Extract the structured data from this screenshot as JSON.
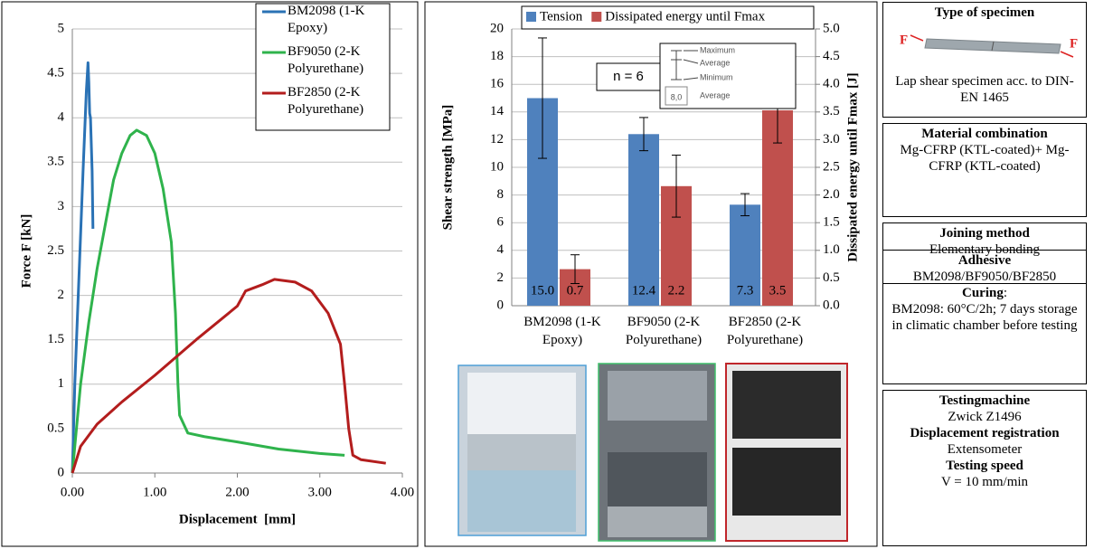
{
  "chart_data": [
    {
      "type": "line",
      "x_label": "Displacement  [mm]",
      "y_label": "Force F [kN]",
      "xlim": [
        0,
        4
      ],
      "xticks": [
        {
          "value": 0,
          "label": "0.00"
        },
        {
          "value": 1,
          "label": "1.00"
        },
        {
          "value": 2,
          "label": "2.00"
        },
        {
          "value": 3,
          "label": "3.00"
        },
        {
          "value": 4,
          "label": "4.00"
        }
      ],
      "ylim": [
        0,
        5
      ],
      "yticks": [
        0,
        0.5,
        1,
        1.5,
        2,
        2.5,
        3,
        3.5,
        4,
        4.5,
        5
      ],
      "grid": true,
      "legend": "top-right",
      "series": [
        {
          "name": "BM2098 (1-K Epoxy)",
          "color": "#2a72b5",
          "x": [
            0,
            0.03,
            0.08,
            0.13,
            0.17,
            0.19,
            0.2,
            0.21,
            0.22,
            0.24,
            0.25
          ],
          "values": [
            0,
            1.0,
            2.2,
            3.4,
            4.3,
            4.62,
            4.4,
            4.05,
            4.0,
            3.4,
            2.75
          ]
        },
        {
          "name": "BF9050 (2-K Polyurethane)",
          "color": "#2fb34c",
          "x": [
            0,
            0.05,
            0.1,
            0.2,
            0.3,
            0.4,
            0.5,
            0.6,
            0.7,
            0.78,
            0.9,
            1.0,
            1.1,
            1.2,
            1.25,
            1.28,
            1.3,
            1.35,
            1.4,
            1.6,
            2.0,
            2.5,
            3.0,
            3.3
          ],
          "values": [
            0,
            0.5,
            1.0,
            1.7,
            2.3,
            2.8,
            3.3,
            3.6,
            3.8,
            3.86,
            3.8,
            3.6,
            3.2,
            2.6,
            1.8,
            1.0,
            0.65,
            0.55,
            0.45,
            0.41,
            0.35,
            0.27,
            0.22,
            0.2
          ]
        },
        {
          "name": "BF2850 (2-K Polyurethane)",
          "color": "#b31d1d",
          "x": [
            0,
            0.1,
            0.3,
            0.6,
            1.0,
            1.5,
            2.0,
            2.1,
            2.3,
            2.45,
            2.7,
            2.9,
            3.1,
            3.25,
            3.3,
            3.35,
            3.4,
            3.5,
            3.8
          ],
          "values": [
            0,
            0.3,
            0.55,
            0.8,
            1.1,
            1.5,
            1.88,
            2.05,
            2.12,
            2.18,
            2.15,
            2.05,
            1.8,
            1.45,
            1.0,
            0.5,
            0.2,
            0.15,
            0.11
          ]
        }
      ]
    },
    {
      "type": "bar",
      "y_label": "Shear strength [MPa]",
      "y2_label": "Dissipated energy until Fmax [J]",
      "categories": [
        "BM2098 (1-K Epoxy)",
        "BF9050 (2-K Polyurethane)",
        "BF2850 (2-K Polyurethane)"
      ],
      "ylim": [
        0,
        20
      ],
      "yticks": [
        0,
        2,
        4,
        6,
        8,
        10,
        12,
        14,
        16,
        18,
        20
      ],
      "y2lim": [
        0,
        5
      ],
      "y2ticks": [
        {
          "value": 0,
          "label": "0.0"
        },
        {
          "value": 0.5,
          "label": "0.5"
        },
        {
          "value": 1,
          "label": "1.0"
        },
        {
          "value": 1.5,
          "label": "1.5"
        },
        {
          "value": 2,
          "label": "2.0"
        },
        {
          "value": 2.5,
          "label": "2.5"
        },
        {
          "value": 3,
          "label": "3.0"
        },
        {
          "value": 3.5,
          "label": "3.5"
        },
        {
          "value": 4,
          "label": "4.0"
        },
        {
          "value": 4.5,
          "label": "4.5"
        },
        {
          "value": 5,
          "label": "5.0"
        }
      ],
      "grid": true,
      "legend": "top",
      "series": [
        {
          "name": "Tension",
          "color": "#4f81bd",
          "values": [
            15.0,
            12.4,
            7.3
          ],
          "value_labels": [
            "15.0",
            "12.4",
            "7.3"
          ],
          "errors": [
            4.35,
            1.2,
            0.8
          ]
        },
        {
          "name": "Dissipated energy until Fmax",
          "color": "#c0504d",
          "axis": "y2",
          "values": [
            0.66,
            2.16,
            3.53
          ],
          "value_labels": [
            "0.7",
            "2.2",
            "3.5"
          ],
          "errors": [
            0.26,
            0.56,
            0.59
          ]
        }
      ],
      "annotation": "n = 6",
      "error_key": {
        "labels": [
          "Maximum",
          "Average",
          "Minimum"
        ],
        "example": "8,0",
        "example_label": "Average"
      }
    }
  ],
  "panels": [
    {
      "items": [
        {
          "text": "Type of specimen",
          "bold": true
        },
        {
          "text": "Lap shear specimen acc. to DIN-EN 1465"
        }
      ],
      "force_labels": [
        "F",
        "F"
      ]
    },
    {
      "items": [
        {
          "text": "Material combination",
          "bold": true
        },
        {
          "text": "Mg-CFRP (KTL-coated)+ Mg-CFRP (KTL-coated)"
        }
      ]
    },
    {
      "items": [
        {
          "text": "Joining method",
          "bold": true
        },
        {
          "text": "Elementary bonding"
        }
      ]
    },
    {
      "items": [
        {
          "text": "Adhesive",
          "bold": true
        },
        {
          "text": "BM2098/BF9050/BF2850"
        },
        {
          "text": "Curing",
          "bold": true,
          "suffix": ":"
        },
        {
          "text": "BM2098: 60°C/2h; 7 days storage in climatic chamber before testing"
        }
      ]
    },
    {
      "items": [
        {
          "text": "Testingmachine",
          "bold": true
        },
        {
          "text": "Zwick Z1496"
        },
        {
          "text": "Displacement registration",
          "bold": true
        },
        {
          "text": "Extensometer"
        },
        {
          "text": "Testing speed",
          "bold": true
        },
        {
          "text": "V = 10 mm/min"
        }
      ]
    }
  ]
}
